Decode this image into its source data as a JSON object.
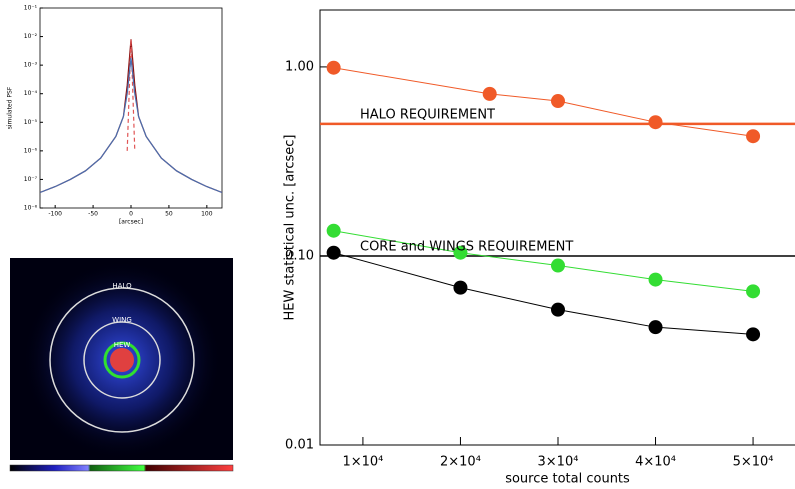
{
  "chart_data": [
    {
      "type": "line",
      "xlabel": "[arcsec]",
      "ylabel": "simulated PSF",
      "xlim": [
        -120,
        120
      ],
      "xticks": [
        -100,
        -50,
        0,
        50,
        100
      ],
      "ylim": [
        1e-08,
        0.1
      ],
      "log_y": true,
      "yticks": [
        {
          "value": 1e-08,
          "label": "10⁻⁸"
        },
        {
          "value": 1e-07,
          "label": "10⁻⁷"
        },
        {
          "value": 1e-06,
          "label": "10⁻⁶"
        },
        {
          "value": 1e-05,
          "label": "10⁻⁵"
        },
        {
          "value": 0.0001,
          "label": "10⁻⁴"
        },
        {
          "value": 0.001,
          "label": "10⁻³"
        },
        {
          "value": 0.01,
          "label": "10⁻²"
        },
        {
          "value": 0.1,
          "label": "10⁻¹"
        }
      ],
      "x": [
        -120,
        -100,
        -80,
        -60,
        -40,
        -20,
        -10,
        -5,
        0,
        5,
        10,
        20,
        40,
        60,
        80,
        100,
        120
      ],
      "series": [
        {
          "color": "#8b1010",
          "values": [
            3.5e-08,
            5.6e-08,
            1e-07,
            2e-07,
            5.6e-07,
            3.2e-06,
            1.6e-05,
            0.0002,
            0.008,
            0.0002,
            1.6e-05,
            3.2e-06,
            5.6e-07,
            2e-07,
            1e-07,
            5.6e-08,
            3.5e-08
          ]
        },
        {
          "color": "#e05555",
          "dash": true,
          "values": [
            null,
            null,
            null,
            null,
            null,
            null,
            null,
            1e-06,
            0.008,
            1e-06,
            null,
            null,
            null,
            null,
            null,
            null,
            null
          ]
        },
        {
          "color": "#4a6fb0",
          "values": [
            3.5e-08,
            5.6e-08,
            1e-07,
            2e-07,
            5.6e-07,
            3.2e-06,
            1.6e-05,
            0.0001,
            0.0018,
            0.0001,
            1.6e-05,
            3.2e-06,
            5.6e-07,
            2e-07,
            1e-07,
            5.6e-08,
            3.5e-08
          ]
        }
      ]
    },
    {
      "type": "line",
      "xlabel": "source total counts",
      "ylabel": "HEW statistical unc. [arcsec]",
      "xlim": [
        5600,
        54300
      ],
      "xticks": [
        {
          "value": 10000,
          "label": "1×10⁴"
        },
        {
          "value": 20000,
          "label": "2×10⁴"
        },
        {
          "value": 30000,
          "label": "3×10⁴"
        },
        {
          "value": 40000,
          "label": "4×10⁴"
        },
        {
          "value": 50000,
          "label": "5×10⁴"
        }
      ],
      "ylim": [
        0.01,
        2
      ],
      "log_y": true,
      "yticks": [
        {
          "value": 0.01,
          "label": "0.01"
        },
        {
          "value": 0.1,
          "label": "0.10"
        },
        {
          "value": 1,
          "label": "1.00"
        }
      ],
      "reference_lines": [
        {
          "value": 0.5,
          "label": "HALO REQUIREMENT",
          "color": "#f05a28"
        },
        {
          "value": 0.1,
          "label": "CORE and WINGS REQUIREMENT",
          "color": "#000000"
        }
      ],
      "series": [
        {
          "color": "#f05a28",
          "x": [
            7000,
            23000,
            30000,
            40000,
            50000
          ],
          "values": [
            0.99,
            0.72,
            0.66,
            0.51,
            0.43
          ]
        },
        {
          "color": "#33dd33",
          "x": [
            7000,
            20000,
            30000,
            40000,
            50000
          ],
          "values": [
            0.136,
            0.104,
            0.089,
            0.075,
            0.065
          ]
        },
        {
          "color": "#000000",
          "x": [
            7000,
            20000,
            30000,
            40000,
            50000
          ],
          "values": [
            0.104,
            0.068,
            0.052,
            0.042,
            0.0385
          ]
        }
      ]
    }
  ],
  "image_panel": {
    "labels": [
      "HALO",
      "WING",
      "HEW"
    ]
  }
}
